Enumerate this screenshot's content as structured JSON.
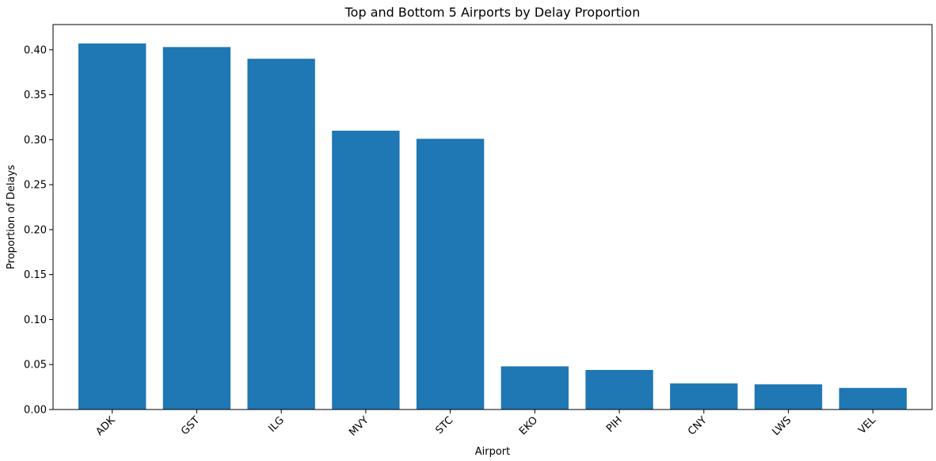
{
  "chart_data": {
    "type": "bar",
    "title": "Top and Bottom 5 Airports by Delay Proportion",
    "xlabel": "Airport",
    "ylabel": "Proportion of Delays",
    "categories": [
      "ADK",
      "GST",
      "ILG",
      "MVY",
      "STC",
      "EKO",
      "PIH",
      "CNY",
      "LWS",
      "VEL"
    ],
    "values": [
      0.407,
      0.403,
      0.39,
      0.31,
      0.301,
      0.048,
      0.044,
      0.029,
      0.028,
      0.024
    ],
    "yticks": [
      "0.00",
      "0.05",
      "0.10",
      "0.15",
      "0.20",
      "0.25",
      "0.30",
      "0.35",
      "0.40"
    ],
    "ylim": [
      0,
      0.428
    ],
    "bar_color": "#1f77b4",
    "grid": false,
    "legend": "none"
  }
}
